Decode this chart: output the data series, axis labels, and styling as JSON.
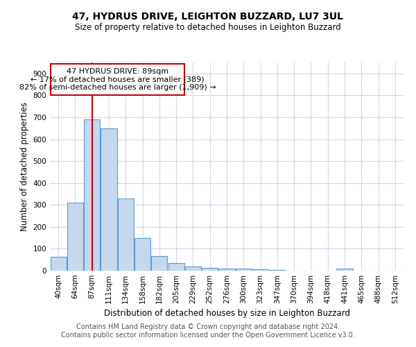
{
  "title": "47, HYDRUS DRIVE, LEIGHTON BUZZARD, LU7 3UL",
  "subtitle": "Size of property relative to detached houses in Leighton Buzzard",
  "xlabel": "Distribution of detached houses by size in Leighton Buzzard",
  "ylabel": "Number of detached properties",
  "footer1": "Contains HM Land Registry data © Crown copyright and database right 2024.",
  "footer2": "Contains public sector information licensed under the Open Government Licence v3.0.",
  "annotation_line1": "47 HYDRUS DRIVE: 89sqm",
  "annotation_line2": "← 17% of detached houses are smaller (389)",
  "annotation_line3": "82% of semi-detached houses are larger (1,909) →",
  "bar_labels": [
    "40sqm",
    "64sqm",
    "87sqm",
    "111sqm",
    "134sqm",
    "158sqm",
    "182sqm",
    "205sqm",
    "229sqm",
    "252sqm",
    "276sqm",
    "300sqm",
    "323sqm",
    "347sqm",
    "370sqm",
    "394sqm",
    "418sqm",
    "441sqm",
    "465sqm",
    "488sqm",
    "512sqm"
  ],
  "bar_values": [
    64,
    310,
    690,
    650,
    330,
    150,
    65,
    35,
    20,
    12,
    8,
    8,
    6,
    4,
    0,
    0,
    0,
    8,
    0,
    0,
    0
  ],
  "bar_color": "#c5d8ed",
  "bar_edge_color": "#5b9bd5",
  "red_line_x": 2,
  "red_line_color": "#cc0000",
  "annotation_box_color": "#cc0000",
  "ylim": [
    0,
    950
  ],
  "yticks": [
    0,
    100,
    200,
    300,
    400,
    500,
    600,
    700,
    800,
    900
  ],
  "bg_color": "#ffffff",
  "grid_color": "#d0d8e8",
  "title_fontsize": 10,
  "subtitle_fontsize": 8.5,
  "axis_label_fontsize": 8.5,
  "tick_fontsize": 7.5,
  "footer_fontsize": 7,
  "annot_fontsize": 8
}
